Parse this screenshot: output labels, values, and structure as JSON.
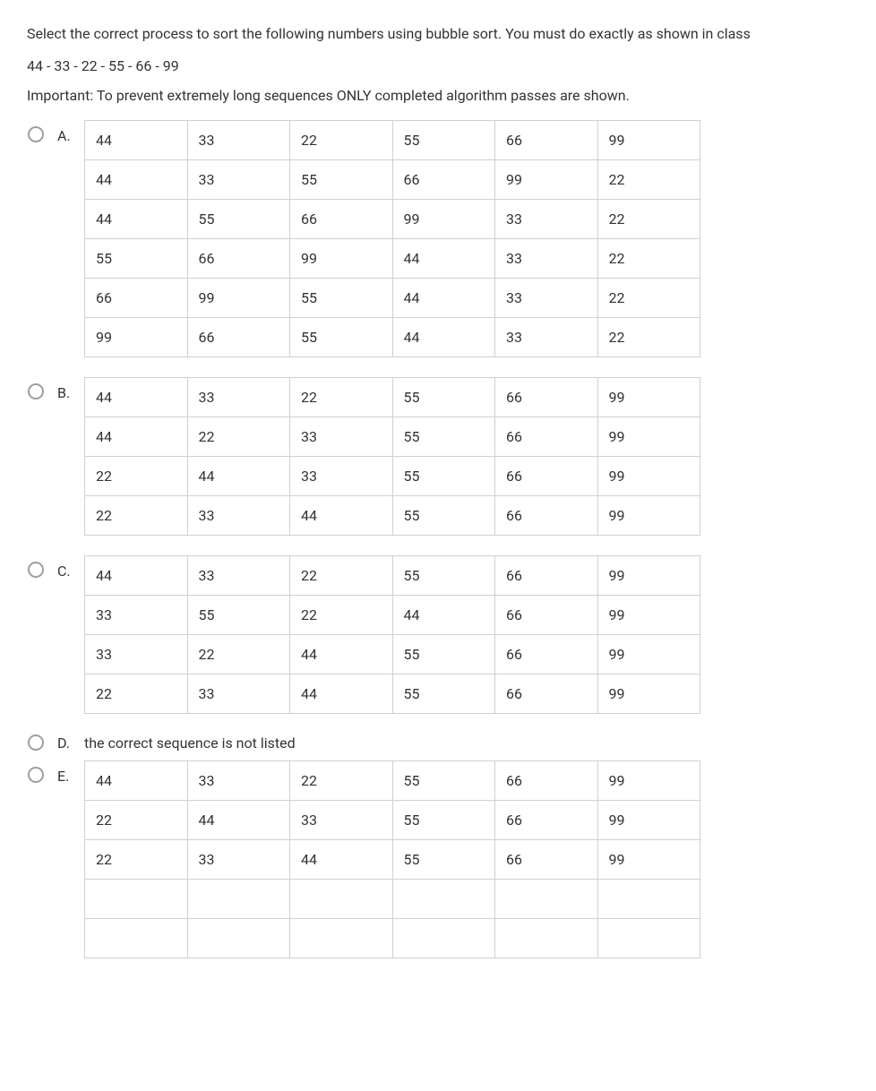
{
  "question": {
    "prompt": "Select the correct process to sort the following numbers using bubble sort. You must do exactly as shown in class",
    "sequence": "44 - 33 - 22 - 55 - 66 - 99",
    "note": "Important: To prevent extremely long sequences ONLY completed algorithm passes are shown."
  },
  "options": {
    "A": {
      "label": "A.",
      "rows": [
        [
          "44",
          "33",
          "22",
          "55",
          "66",
          "99"
        ],
        [
          "44",
          "33",
          "55",
          "66",
          "99",
          "22"
        ],
        [
          "44",
          "55",
          "66",
          "99",
          "33",
          "22"
        ],
        [
          "55",
          "66",
          "99",
          "44",
          "33",
          "22"
        ],
        [
          "66",
          "99",
          "55",
          "44",
          "33",
          "22"
        ],
        [
          "99",
          "66",
          "55",
          "44",
          "33",
          "22"
        ]
      ]
    },
    "B": {
      "label": "B.",
      "rows": [
        [
          "44",
          "33",
          "22",
          "55",
          "66",
          "99"
        ],
        [
          "44",
          "22",
          "33",
          "55",
          "66",
          "99"
        ],
        [
          "22",
          "44",
          "33",
          "55",
          "66",
          "99"
        ],
        [
          "22",
          "33",
          "44",
          "55",
          "66",
          "99"
        ]
      ]
    },
    "C": {
      "label": "C.",
      "rows": [
        [
          "44",
          "33",
          "22",
          "55",
          "66",
          "99"
        ],
        [
          "33",
          "55",
          "22",
          "44",
          "66",
          "99"
        ],
        [
          "33",
          "22",
          "44",
          "55",
          "66",
          "99"
        ],
        [
          "22",
          "33",
          "44",
          "55",
          "66",
          "99"
        ]
      ]
    },
    "D": {
      "label": "D.",
      "text": "the correct sequence is not listed"
    },
    "E": {
      "label": "E.",
      "rows": [
        [
          "44",
          "33",
          "22",
          "55",
          "66",
          "99"
        ],
        [
          "22",
          "44",
          "33",
          "55",
          "66",
          "99"
        ],
        [
          "22",
          "33",
          "44",
          "55",
          "66",
          "99"
        ],
        [
          "",
          "",
          "",
          "",
          "",
          ""
        ],
        [
          "",
          "",
          "",
          "",
          "",
          ""
        ]
      ]
    }
  }
}
